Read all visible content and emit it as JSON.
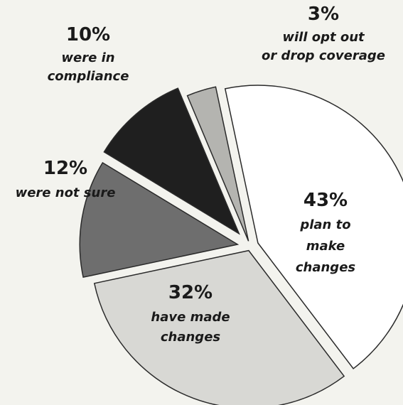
{
  "chart_data": {
    "type": "pie",
    "slices": [
      {
        "value": 43,
        "percent_label": "43%",
        "label_lines": [
          "plan to",
          "make",
          "changes"
        ],
        "color": "#ffffff"
      },
      {
        "value": 32,
        "percent_label": "32%",
        "label_lines": [
          "have made",
          "changes"
        ],
        "color": "#d8d8d4"
      },
      {
        "value": 12,
        "percent_label": "12%",
        "label_lines": [
          "were not sure"
        ],
        "color": "#6e6e6e"
      },
      {
        "value": 10,
        "percent_label": "10%",
        "label_lines": [
          "were in",
          "compliance"
        ],
        "color": "#1f1f1f"
      },
      {
        "value": 3,
        "percent_label": "3%",
        "label_lines": [
          "will opt out",
          "or drop coverage"
        ],
        "color": "#b4b4b0"
      }
    ],
    "legend": "none",
    "grid": false
  }
}
